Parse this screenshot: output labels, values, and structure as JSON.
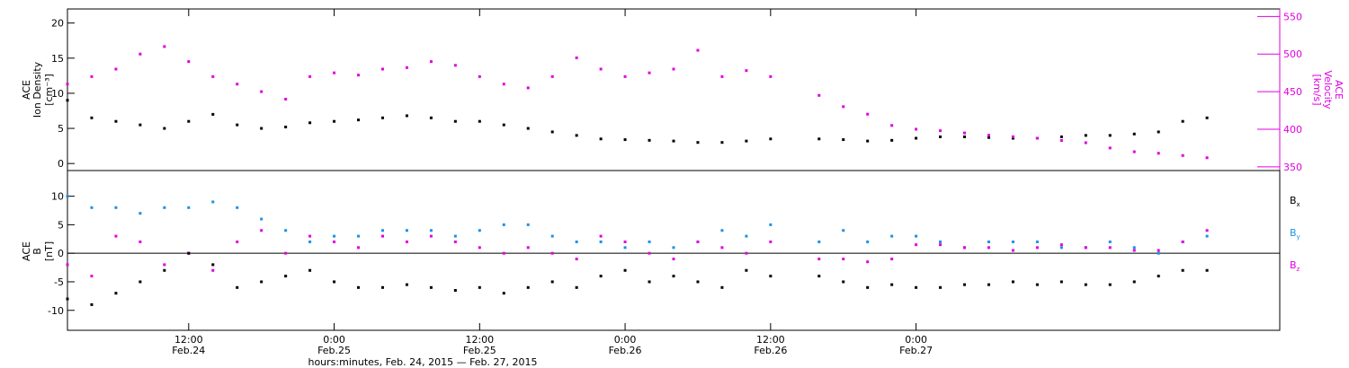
{
  "chart_data": [
    {
      "type": "scatter",
      "panel": "top",
      "ylabel_left": [
        "ACE",
        "Ion Density",
        "[cm⁻³]"
      ],
      "ylabel_right": [
        "ACE",
        "Velocity",
        "[km/s]"
      ],
      "ylim_left": [
        -1,
        22
      ],
      "ylim_right": [
        345,
        560
      ],
      "y_ticks_left": [
        "0",
        "5",
        "10",
        "15",
        "20"
      ],
      "y_ticks_left_values": [
        0,
        5,
        10,
        15,
        20
      ],
      "y_ticks_right": [
        "350",
        "400",
        "450",
        "500",
        "550"
      ],
      "y_ticks_right_values": [
        350,
        400,
        450,
        500,
        550
      ],
      "series": [
        {
          "name": "",
          "axis": "left",
          "color": "#000000",
          "x": [
            0,
            2,
            4,
            6,
            8,
            10,
            12,
            14,
            16,
            18,
            20,
            22,
            24,
            26,
            28,
            30,
            32,
            34,
            36,
            38,
            40,
            42,
            44,
            46,
            48,
            50,
            52,
            54,
            56,
            58,
            62,
            64,
            66,
            68,
            70,
            72,
            74,
            76,
            78,
            80,
            82,
            84,
            86,
            88,
            90,
            92,
            94
          ],
          "y": [
            9,
            6.5,
            6,
            5.5,
            5,
            6,
            7,
            5.5,
            5,
            5.2,
            5.8,
            6,
            6.2,
            6.5,
            6.8,
            6.5,
            6,
            6,
            5.5,
            5,
            4.5,
            4,
            3.5,
            3.4,
            3.3,
            3.2,
            3,
            3,
            3.2,
            3.5,
            3.5,
            3.4,
            3.2,
            3.3,
            3.6,
            3.8,
            3.8,
            3.7,
            3.6,
            3.6,
            3.8,
            4,
            4,
            4.2,
            4.5,
            6,
            6.5
          ]
        },
        {
          "name": "",
          "axis": "right",
          "color": "#e000e0",
          "x": [
            0,
            2,
            4,
            6,
            8,
            10,
            12,
            14,
            16,
            18,
            20,
            22,
            24,
            26,
            28,
            30,
            32,
            34,
            36,
            38,
            40,
            42,
            44,
            46,
            48,
            50,
            52,
            54,
            56,
            58,
            62,
            64,
            66,
            68,
            70,
            72,
            74,
            76,
            78,
            80,
            82,
            84,
            86,
            88,
            90,
            92,
            94
          ],
          "y": [
            460,
            470,
            480,
            500,
            510,
            490,
            470,
            460,
            450,
            440,
            470,
            475,
            472,
            480,
            482,
            490,
            485,
            470,
            460,
            455,
            470,
            495,
            480,
            470,
            475,
            480,
            505,
            470,
            478,
            470,
            445,
            430,
            420,
            405,
            400,
            398,
            395,
            392,
            390,
            388,
            385,
            382,
            375,
            370,
            368,
            365,
            362
          ]
        }
      ]
    },
    {
      "type": "scatter",
      "panel": "bottom",
      "ylabel_left": [
        "ACE",
        "B",
        "[nT]"
      ],
      "ylim": [
        -13.5,
        14.5
      ],
      "y_ticks": [
        "-10",
        "-5",
        "0",
        "5",
        "10"
      ],
      "y_ticks_values": [
        -10,
        -5,
        0,
        5,
        10
      ],
      "legend": [
        "Bx",
        "By",
        "Bz"
      ],
      "legend_main": [
        "B",
        "B",
        "B"
      ],
      "legend_sub": [
        "x",
        "y",
        "z"
      ],
      "series": [
        {
          "name": "Bx",
          "color": "#000000",
          "x": [
            0,
            2,
            4,
            6,
            8,
            10,
            12,
            14,
            16,
            18,
            20,
            22,
            24,
            26,
            28,
            30,
            32,
            34,
            36,
            38,
            40,
            42,
            44,
            46,
            48,
            50,
            52,
            54,
            56,
            58,
            62,
            64,
            66,
            68,
            70,
            72,
            74,
            76,
            78,
            80,
            82,
            84,
            86,
            88,
            90,
            92,
            94
          ],
          "y": [
            -8,
            -9,
            -7,
            -5,
            -3,
            0,
            -2,
            -6,
            -5,
            -4,
            -3,
            -5,
            -6,
            -6,
            -5.5,
            -6,
            -6.5,
            -6,
            -7,
            -6,
            -5,
            -6,
            -4,
            -3,
            -5,
            -4,
            -5,
            -6,
            -3,
            -4,
            -4,
            -5,
            -6,
            -5.5,
            -6,
            -6,
            -5.5,
            -5.5,
            -5,
            -5.5,
            -5,
            -5.5,
            -5.5,
            -5,
            -4,
            -3,
            -3
          ]
        },
        {
          "name": "By",
          "color": "#1e90e6",
          "x": [
            0,
            2,
            4,
            6,
            8,
            10,
            12,
            14,
            16,
            18,
            20,
            22,
            24,
            26,
            28,
            30,
            32,
            34,
            36,
            38,
            40,
            42,
            44,
            46,
            48,
            50,
            52,
            54,
            56,
            58,
            62,
            64,
            66,
            68,
            70,
            72,
            74,
            76,
            78,
            80,
            82,
            84,
            86,
            88,
            90,
            92,
            94
          ],
          "y": [
            10,
            8,
            8,
            7,
            8,
            8,
            9,
            8,
            6,
            4,
            2,
            3,
            3,
            4,
            4,
            4,
            3,
            4,
            5,
            5,
            3,
            2,
            2,
            1,
            2,
            1,
            2,
            4,
            3,
            5,
            2,
            4,
            2,
            3,
            3,
            2,
            1,
            2,
            2,
            2,
            1,
            1,
            2,
            1,
            0,
            2,
            3
          ]
        },
        {
          "name": "Bz",
          "color": "#e000e0",
          "x": [
            0,
            2,
            4,
            6,
            8,
            10,
            12,
            14,
            16,
            18,
            20,
            22,
            24,
            26,
            28,
            30,
            32,
            34,
            36,
            38,
            40,
            42,
            44,
            46,
            48,
            50,
            52,
            54,
            56,
            58,
            62,
            64,
            66,
            68,
            70,
            72,
            74,
            76,
            78,
            80,
            82,
            84,
            86,
            88,
            90,
            92,
            94
          ],
          "y": [
            -2,
            -4,
            3,
            2,
            -2,
            0,
            -3,
            2,
            4,
            0,
            3,
            2,
            1,
            3,
            2,
            3,
            2,
            1,
            0,
            1,
            0,
            -1,
            3,
            2,
            0,
            -1,
            2,
            1,
            0,
            2,
            -1,
            -1,
            -1.5,
            -1,
            1.5,
            1.5,
            1,
            1,
            0.5,
            1,
            1.5,
            1,
            1,
            0.5,
            0.5,
            2,
            4
          ]
        }
      ]
    }
  ],
  "time_axis": {
    "xlim_hours": [
      0,
      100
    ],
    "tick_labels": [
      {
        "time": "12:00",
        "date": "Feb.24"
      },
      {
        "time": "0:00",
        "date": "Feb.25"
      },
      {
        "time": "12:00",
        "date": "Feb.25"
      },
      {
        "time": "0:00",
        "date": "Feb.26"
      },
      {
        "time": "12:00",
        "date": "Feb.26"
      },
      {
        "time": "0:00",
        "date": "Feb.27"
      }
    ],
    "tick_hours": [
      10,
      22,
      34,
      46,
      58,
      70
    ],
    "xlabel": "hours:minutes, Feb. 24, 2015 — Feb. 27, 2015"
  }
}
